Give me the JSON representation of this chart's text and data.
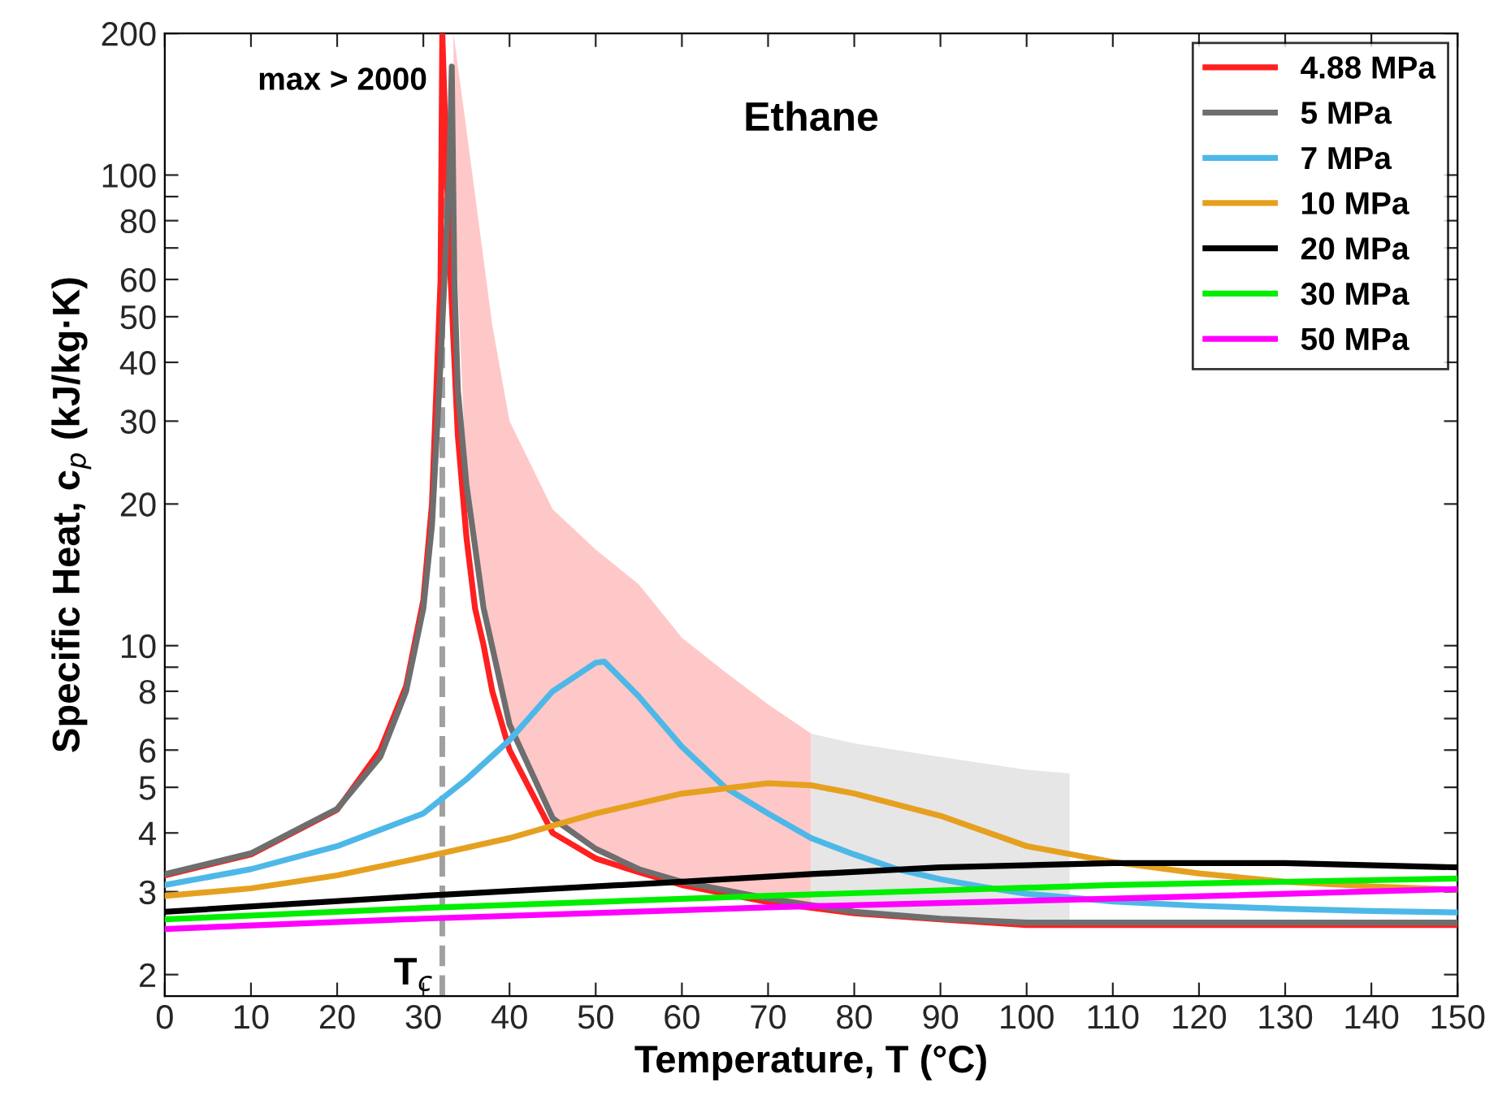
{
  "chart_data": {
    "type": "line",
    "title": "Ethane",
    "xlabel": "Temperature, T (°C)",
    "ylabel": "Specific Heat, c$_{p}$ (kJ/kg·K)",
    "log": "y",
    "xlim": [
      0,
      150
    ],
    "ylim": [
      1.8,
      200
    ],
    "xticks": [
      0,
      10,
      20,
      30,
      40,
      50,
      60,
      70,
      80,
      90,
      100,
      110,
      120,
      130,
      140,
      150
    ],
    "yticks": [
      2,
      3,
      4,
      5,
      6,
      {
        "value": 7,
        "label": null
      },
      8,
      {
        "value": 9,
        "label": null
      },
      10,
      20,
      30,
      40,
      50,
      60,
      {
        "value": 70,
        "label": null
      },
      80,
      {
        "value": 90,
        "label": null
      },
      100,
      200
    ],
    "grid": false,
    "legend": "top right",
    "marker": "none",
    "line_style": "solid",
    "annotations": [
      "max > 2000"
    ],
    "ref_lines": [
      {
        "axis": "x",
        "value": 32.2,
        "label": "T$_{c}$",
        "color": "#a0a0a0",
        "line_style": "dashed"
      }
    ],
    "series": [
      {
        "name": "4.88 MPa",
        "color": "#ff2020",
        "x": [
          0,
          10,
          20,
          25,
          28,
          30,
          31,
          32,
          32.2,
          33,
          34,
          35,
          36,
          37,
          38,
          40,
          45,
          50,
          55,
          60,
          70,
          80,
          90,
          100,
          110,
          120,
          150
        ],
        "values": [
          3.25,
          3.6,
          4.48,
          6.0,
          8.2,
          12.5,
          20,
          60,
          200,
          70,
          28,
          17,
          12,
          10,
          8.0,
          6.0,
          4.0,
          3.53,
          3.3,
          3.1,
          2.85,
          2.7,
          2.62,
          2.55,
          2.55,
          2.55,
          2.55
        ]
      },
      {
        "name": "5 MPa",
        "color": "#6e6e6e",
        "x": [
          0,
          10,
          20,
          25,
          28,
          30,
          31,
          32,
          33,
          33.3,
          33.6,
          34,
          35,
          37,
          40,
          45,
          50,
          55,
          60,
          70,
          80,
          90,
          100,
          110,
          150
        ],
        "values": [
          3.27,
          3.62,
          4.5,
          5.8,
          8,
          12,
          18,
          40,
          100,
          170,
          60,
          35,
          22,
          12,
          6.8,
          4.3,
          3.7,
          3.35,
          3.15,
          2.9,
          2.72,
          2.63,
          2.58,
          2.58,
          2.58
        ]
      },
      {
        "type": "area",
        "color": "#ffc8c8",
        "x": [
          33.5,
          35,
          38,
          40,
          45,
          50,
          55,
          60,
          65,
          70,
          75
        ],
        "values": [
          200,
          125,
          48,
          30,
          19.5,
          16,
          13.5,
          10.4,
          8.8,
          7.5,
          6.5
        ]
      },
      {
        "type": "area",
        "color": "#e6e6e6",
        "x": [
          75,
          80,
          90,
          100,
          105
        ],
        "values": [
          6.5,
          6.2,
          5.8,
          5.45,
          5.35
        ]
      },
      {
        "name": "7 MPa",
        "color": "#4db8e8",
        "x": [
          0,
          10,
          20,
          30,
          35,
          40,
          45,
          50,
          51,
          55,
          60,
          65,
          70,
          75,
          80,
          85,
          90,
          95,
          100,
          110,
          120,
          130,
          140,
          150
        ],
        "values": [
          3.1,
          3.35,
          3.75,
          4.4,
          5.2,
          6.3,
          8.0,
          9.2,
          9.25,
          7.8,
          6.1,
          5.0,
          4.4,
          3.9,
          3.6,
          3.35,
          3.19,
          3.07,
          2.97,
          2.86,
          2.8,
          2.76,
          2.73,
          2.71
        ]
      },
      {
        "name": "10 MPa",
        "color": "#e6a020",
        "x": [
          0,
          10,
          20,
          30,
          40,
          50,
          60,
          70,
          75,
          80,
          90,
          100,
          110,
          120,
          130,
          140,
          150
        ],
        "values": [
          2.94,
          3.05,
          3.25,
          3.55,
          3.9,
          4.4,
          4.85,
          5.1,
          5.05,
          4.85,
          4.35,
          3.75,
          3.47,
          3.28,
          3.15,
          3.08,
          3.03
        ]
      },
      {
        "name": "20 MPa",
        "color": "#000000",
        "x": [
          0,
          30,
          60,
          75,
          90,
          110,
          130,
          150
        ],
        "values": [
          2.72,
          2.94,
          3.15,
          3.27,
          3.38,
          3.45,
          3.45,
          3.38
        ]
      },
      {
        "name": "30 MPa",
        "color": "#00ee00",
        "x": [
          0,
          30,
          70,
          110,
          150
        ],
        "values": [
          2.62,
          2.77,
          2.94,
          3.1,
          3.2
        ]
      },
      {
        "name": "50 MPa",
        "color": "#ff00ff",
        "x": [
          0,
          30,
          70,
          110,
          150
        ],
        "values": [
          2.5,
          2.63,
          2.78,
          2.9,
          3.04
        ]
      }
    ]
  }
}
